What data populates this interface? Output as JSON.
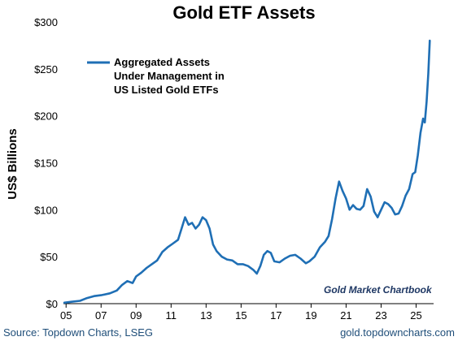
{
  "chart_data": {
    "type": "line",
    "title": "Gold ETF Assets",
    "ylabel": "US$ Billions",
    "xlabel": "",
    "ylim": [
      0,
      300
    ],
    "xlim": [
      2004.85,
      2026.0
    ],
    "y_ticks": [
      0,
      50,
      100,
      150,
      200,
      250,
      300
    ],
    "y_tick_labels": [
      "$0",
      "$50",
      "$100",
      "$150",
      "$200",
      "$250",
      "$300"
    ],
    "x_ticks": [
      2005,
      2007,
      2009,
      2011,
      2013,
      2015,
      2017,
      2019,
      2021,
      2023,
      2025
    ],
    "x_tick_labels": [
      "05",
      "07",
      "09",
      "11",
      "13",
      "15",
      "17",
      "19",
      "21",
      "23",
      "25"
    ],
    "grid": false,
    "legend_position": "top-left",
    "line_color": "#1f6fb5",
    "series": [
      {
        "name": "Aggregated Assets Under Management in US Listed Gold ETFs",
        "points": [
          [
            2004.9,
            1
          ],
          [
            2005.3,
            2
          ],
          [
            2005.8,
            3
          ],
          [
            2006.2,
            6
          ],
          [
            2006.6,
            8
          ],
          [
            2007.0,
            9
          ],
          [
            2007.5,
            11
          ],
          [
            2007.9,
            14
          ],
          [
            2008.2,
            20
          ],
          [
            2008.5,
            24
          ],
          [
            2008.8,
            22
          ],
          [
            2009.0,
            29
          ],
          [
            2009.3,
            33
          ],
          [
            2009.6,
            38
          ],
          [
            2009.9,
            42
          ],
          [
            2010.2,
            46
          ],
          [
            2010.5,
            55
          ],
          [
            2010.8,
            60
          ],
          [
            2011.1,
            64
          ],
          [
            2011.4,
            68
          ],
          [
            2011.6,
            80
          ],
          [
            2011.8,
            92
          ],
          [
            2012.0,
            84
          ],
          [
            2012.2,
            86
          ],
          [
            2012.4,
            80
          ],
          [
            2012.6,
            84
          ],
          [
            2012.8,
            92
          ],
          [
            2013.0,
            89
          ],
          [
            2013.2,
            80
          ],
          [
            2013.4,
            63
          ],
          [
            2013.6,
            56
          ],
          [
            2013.9,
            50
          ],
          [
            2014.2,
            47
          ],
          [
            2014.5,
            46
          ],
          [
            2014.8,
            42
          ],
          [
            2015.1,
            42
          ],
          [
            2015.4,
            40
          ],
          [
            2015.7,
            36
          ],
          [
            2015.9,
            32
          ],
          [
            2016.1,
            40
          ],
          [
            2016.3,
            52
          ],
          [
            2016.5,
            56
          ],
          [
            2016.7,
            54
          ],
          [
            2016.9,
            45
          ],
          [
            2017.2,
            44
          ],
          [
            2017.5,
            48
          ],
          [
            2017.8,
            51
          ],
          [
            2018.1,
            52
          ],
          [
            2018.4,
            48
          ],
          [
            2018.7,
            43
          ],
          [
            2018.9,
            45
          ],
          [
            2019.2,
            50
          ],
          [
            2019.5,
            60
          ],
          [
            2019.8,
            66
          ],
          [
            2020.0,
            72
          ],
          [
            2020.2,
            90
          ],
          [
            2020.4,
            112
          ],
          [
            2020.6,
            130
          ],
          [
            2020.8,
            120
          ],
          [
            2021.0,
            112
          ],
          [
            2021.2,
            100
          ],
          [
            2021.4,
            105
          ],
          [
            2021.6,
            101
          ],
          [
            2021.8,
            100
          ],
          [
            2022.0,
            104
          ],
          [
            2022.2,
            122
          ],
          [
            2022.4,
            114
          ],
          [
            2022.6,
            98
          ],
          [
            2022.8,
            92
          ],
          [
            2023.0,
            100
          ],
          [
            2023.2,
            108
          ],
          [
            2023.4,
            106
          ],
          [
            2023.6,
            102
          ],
          [
            2023.8,
            95
          ],
          [
            2024.0,
            96
          ],
          [
            2024.2,
            104
          ],
          [
            2024.4,
            115
          ],
          [
            2024.6,
            122
          ],
          [
            2024.8,
            138
          ],
          [
            2024.95,
            140
          ],
          [
            2025.1,
            158
          ],
          [
            2025.25,
            182
          ],
          [
            2025.4,
            197
          ],
          [
            2025.5,
            193
          ],
          [
            2025.6,
            215
          ],
          [
            2025.7,
            245
          ],
          [
            2025.78,
            280
          ]
        ]
      }
    ]
  },
  "legend": {
    "line1": "Aggregated Assets",
    "line2": "Under Management in",
    "line3": "US Listed Gold ETFs"
  },
  "watermark": "Gold Market Chartbook",
  "footer": {
    "source": "Source: Topdown Charts, LSEG",
    "site": "gold.topdowncharts.com"
  }
}
